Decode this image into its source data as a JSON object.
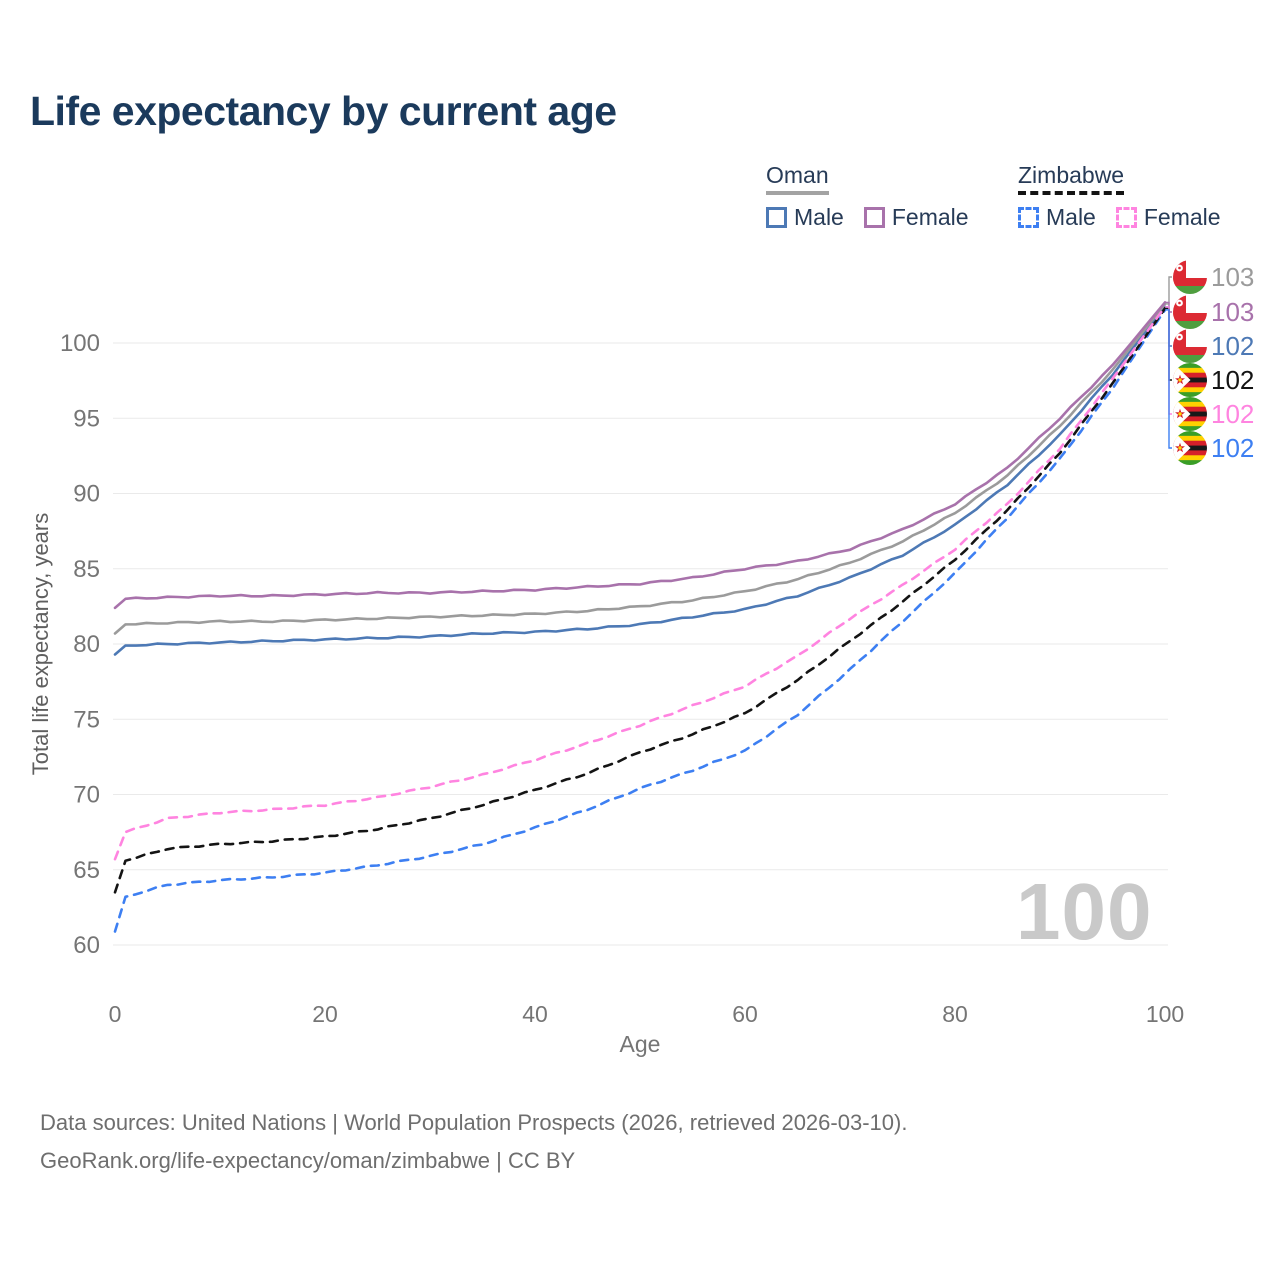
{
  "header": {
    "title": "Life expectancy by current age"
  },
  "legend": {
    "groups": [
      {
        "label": "Oman",
        "line_style": "solid",
        "underline_color": "#a3a3a3",
        "items": [
          {
            "label": "Male",
            "color": "#4d79b5"
          },
          {
            "label": "Female",
            "color": "#a872ab"
          }
        ]
      },
      {
        "label": "Zimbabwe",
        "line_style": "dashed",
        "underline_color": "#141414",
        "items": [
          {
            "label": "Male",
            "color": "#3d7ff2"
          },
          {
            "label": "Female",
            "color": "#ff84e0"
          }
        ]
      }
    ]
  },
  "watermark": "100",
  "footer": {
    "line1": "Data sources: United Nations | World Population Prospects (2026, retrieved 2026-03-10).",
    "line2": "GeoRank.org/life-expectancy/oman/zimbabwe | CC BY"
  },
  "chart_data": {
    "type": "line",
    "title": "Life expectancy by current age",
    "xlabel": "Age",
    "ylabel": "Total life expectancy, years",
    "xlim": [
      0,
      100
    ],
    "ylim": [
      60,
      103
    ],
    "xticks": [
      0,
      20,
      40,
      60,
      80,
      100
    ],
    "yticks": [
      60,
      65,
      70,
      75,
      80,
      85,
      90,
      95,
      100
    ],
    "grid": "horizontal",
    "grid_color": "#eaeaea",
    "tick_color": "#757575",
    "x": [
      0,
      1,
      5,
      10,
      15,
      20,
      25,
      30,
      35,
      40,
      45,
      50,
      55,
      60,
      65,
      70,
      75,
      80,
      85,
      90,
      95,
      100
    ],
    "series": [
      {
        "id": "oman-both",
        "name": "Oman",
        "country": "Oman",
        "flag": "oman",
        "color": "#9b9b9b",
        "dash": false,
        "end_label": "103",
        "values": [
          80.7,
          81.3,
          81.4,
          81.5,
          81.5,
          81.6,
          81.7,
          81.8,
          81.9,
          82.0,
          82.2,
          82.5,
          82.9,
          83.5,
          84.3,
          85.4,
          86.8,
          88.7,
          91.2,
          94.5,
          98.2,
          102.6
        ]
      },
      {
        "id": "oman-female",
        "name": "Oman Female",
        "country": "Oman",
        "flag": "oman",
        "color": "#a872ab",
        "dash": false,
        "end_label": "103",
        "values": [
          82.4,
          83.0,
          83.1,
          83.2,
          83.2,
          83.3,
          83.4,
          83.4,
          83.5,
          83.6,
          83.8,
          84.0,
          84.4,
          85.0,
          85.5,
          86.3,
          87.6,
          89.3,
          91.7,
          95.0,
          98.5,
          102.7
        ]
      },
      {
        "id": "oman-male",
        "name": "Oman Male",
        "country": "Oman",
        "flag": "oman",
        "color": "#4d79b5",
        "dash": false,
        "end_label": "102",
        "values": [
          79.3,
          79.9,
          80.0,
          80.1,
          80.2,
          80.3,
          80.4,
          80.5,
          80.7,
          80.8,
          81.0,
          81.3,
          81.8,
          82.3,
          83.2,
          84.4,
          85.9,
          87.9,
          90.6,
          93.9,
          97.9,
          102.4
        ]
      },
      {
        "id": "zim-both",
        "name": "Zimbabwe",
        "country": "Zimbabwe",
        "flag": "zimbabwe",
        "color": "#141414",
        "dash": true,
        "end_label": "102",
        "values": [
          63.5,
          65.6,
          66.4,
          66.7,
          66.9,
          67.2,
          67.7,
          68.4,
          69.3,
          70.3,
          71.4,
          72.8,
          74.0,
          75.4,
          77.6,
          80.2,
          82.8,
          85.6,
          88.9,
          92.7,
          97.3,
          102.3
        ]
      },
      {
        "id": "zim-female",
        "name": "Zimbabwe Female",
        "country": "Zimbabwe",
        "flag": "zimbabwe",
        "color": "#ff84e0",
        "dash": true,
        "end_label": "102",
        "values": [
          65.7,
          67.5,
          68.4,
          68.8,
          69.0,
          69.3,
          69.8,
          70.5,
          71.3,
          72.3,
          73.4,
          74.6,
          75.9,
          77.2,
          79.2,
          81.7,
          83.9,
          86.3,
          89.3,
          93.0,
          97.6,
          102.4
        ]
      },
      {
        "id": "zim-male",
        "name": "Zimbabwe Male",
        "country": "Zimbabwe",
        "flag": "zimbabwe",
        "color": "#3d7ff2",
        "dash": true,
        "end_label": "102",
        "values": [
          60.9,
          63.2,
          64.0,
          64.3,
          64.5,
          64.8,
          65.3,
          65.9,
          66.7,
          67.8,
          69.0,
          70.4,
          71.6,
          72.9,
          75.3,
          78.3,
          81.5,
          84.7,
          88.4,
          92.3,
          97.0,
          102.2
        ]
      }
    ],
    "right_labels_order": [
      "oman-both",
      "oman-female",
      "oman-male",
      "zim-both",
      "zim-female",
      "zim-male"
    ],
    "legend_position": "top-right"
  }
}
